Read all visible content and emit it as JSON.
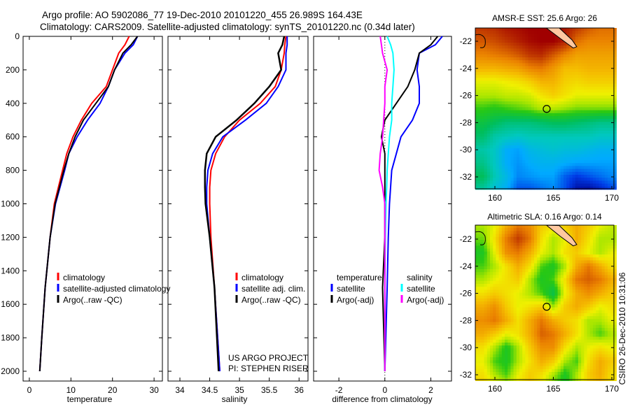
{
  "title_line1": "Argo profile: AO 5902086_77 19-Dec-2010 20101220_455 26.989S 164.43E",
  "title_line2": "Climatology: CARS2009. Satellite-adjusted climatology: synTS_20101220.nc (0.34d later)",
  "side_stamp": "CSIRO 26-Dec-2010 10:31:06",
  "project_line1": "US ARGO PROJECT",
  "project_line2": "PI: STEPHEN RISER",
  "colors": {
    "climatology": "#ff0000",
    "satellite": "#0000ff",
    "argo": "#000000",
    "sal_satellite": "#00ffff",
    "sal_argo": "#ff00ff",
    "land": "#ffc8a0"
  },
  "chart_data": [
    {
      "type": "line",
      "xlabel": "temperature",
      "ylabel": "",
      "xlim": [
        -1.5,
        32
      ],
      "ylim": [
        2000,
        0
      ],
      "xticks": [
        "0",
        "10",
        "20",
        "30"
      ],
      "yticks": [
        "0",
        "200",
        "400",
        "600",
        "800",
        "1000",
        "1200",
        "1400",
        "1600",
        "1800",
        "2000"
      ],
      "legend": [
        "climatology",
        "satellite-adjusted climatology",
        "Argo(..raw -QC)"
      ],
      "depth": [
        0,
        50,
        100,
        200,
        300,
        400,
        500,
        600,
        700,
        800,
        1000,
        1200,
        1500,
        1800,
        2000
      ],
      "series": [
        {
          "name": "climatology",
          "values": [
            24,
            23,
            21.5,
            20,
            18.5,
            15,
            12.5,
            10.5,
            9,
            8,
            6,
            5,
            3.8,
            3,
            2.5
          ]
        },
        {
          "name": "satellite-adjusted climatology",
          "values": [
            26,
            25,
            23,
            20.5,
            19,
            17,
            14,
            11.5,
            9.5,
            8.5,
            6.3,
            5,
            3.8,
            3,
            2.5
          ]
        },
        {
          "name": "Argo(..raw -QC)",
          "values": [
            26,
            24.5,
            22.5,
            20.5,
            19,
            16,
            13,
            11,
            9.5,
            8.3,
            6.2,
            5,
            3.8,
            3,
            2.5
          ]
        }
      ]
    },
    {
      "type": "line",
      "xlabel": "salinity",
      "xlim": [
        33.8,
        36.15
      ],
      "ylim": [
        2000,
        0
      ],
      "xticks": [
        "34",
        "34.5",
        "35",
        "35.5",
        "36"
      ],
      "legend": [
        "climatology",
        "satellite adj. clim.",
        "Argo(..raw -QC)"
      ],
      "depth": [
        0,
        50,
        100,
        200,
        300,
        400,
        500,
        600,
        700,
        800,
        900,
        1000,
        1200,
        1500,
        2000
      ],
      "series": [
        {
          "name": "climatology",
          "values": [
            35.78,
            35.76,
            35.75,
            35.7,
            35.6,
            35.35,
            35.0,
            34.75,
            34.6,
            34.52,
            34.5,
            34.5,
            34.52,
            34.58,
            34.67
          ]
        },
        {
          "name": "satellite adj. clim.",
          "values": [
            35.8,
            35.8,
            35.78,
            35.78,
            35.65,
            35.45,
            35.1,
            34.72,
            34.55,
            34.47,
            34.45,
            34.45,
            34.5,
            34.58,
            34.67
          ]
        },
        {
          "name": "Argo(..raw -QC)",
          "values": [
            35.75,
            35.72,
            35.65,
            35.7,
            35.5,
            35.25,
            34.95,
            34.6,
            34.45,
            34.42,
            34.42,
            34.43,
            34.5,
            34.58,
            34.65
          ]
        }
      ]
    },
    {
      "type": "line",
      "xlabel": "difference from climatology",
      "xlim": [
        -3.1,
        2.9
      ],
      "ylim": [
        2000,
        0
      ],
      "xticks": [
        "-2",
        "0",
        "2"
      ],
      "legend_groups": [
        {
          "heading": "temperature",
          "items": [
            "satellite",
            "Argo(-adj)"
          ]
        },
        {
          "heading": "salinity",
          "items": [
            "satellite",
            "Argo(-adj)"
          ]
        }
      ],
      "depth": [
        0,
        50,
        100,
        200,
        300,
        400,
        500,
        600,
        700,
        800,
        900,
        1000,
        1200,
        1500,
        2000
      ],
      "series": [
        {
          "name": "temperature satellite",
          "values": [
            2.5,
            2.2,
            1.5,
            1.4,
            1.5,
            1.5,
            1.2,
            0.7,
            0.5,
            0.3,
            0.25,
            0.2,
            0.15,
            0.1,
            0
          ]
        },
        {
          "name": "temperature Argo(-adj)",
          "values": [
            2.3,
            2.0,
            1.5,
            1.3,
            1.0,
            0.5,
            0.0,
            -0.15,
            0,
            0,
            0,
            0,
            0,
            -0.1,
            0
          ]
        },
        {
          "name": "salinity satellite",
          "values": [
            0.1,
            0.25,
            0.35,
            0.4,
            0.35,
            0.3,
            0.3,
            0.2,
            0.15,
            0.1,
            0.08,
            0.05,
            0.02,
            0,
            0
          ]
        },
        {
          "name": "salinity Argo(-adj)",
          "values": [
            -0.2,
            -0.15,
            -0.1,
            0.1,
            0.0,
            0.0,
            -0.05,
            -0.1,
            -0.2,
            -0.25,
            -0.1,
            0,
            0,
            0,
            0
          ]
        }
      ]
    },
    {
      "type": "heatmap",
      "title": "AMSR-E SST: 25.6 Argo: 26",
      "lon": [
        159,
        160,
        161,
        162,
        163,
        164,
        165,
        166,
        167,
        168,
        169,
        170
      ],
      "lat": [
        -21,
        -22,
        -23,
        -24,
        -25,
        -26,
        -27,
        -28,
        -29,
        -30,
        -31,
        -32,
        -33
      ],
      "xticks": [
        "160",
        "165",
        "170"
      ],
      "yticks": [
        "-22",
        "-24",
        "-26",
        "-28",
        "-30",
        "-32"
      ],
      "range": [
        21.5,
        28
      ],
      "values": [
        [
          27.5,
          27.6,
          27.8,
          27.9,
          28,
          28,
          28,
          27.8,
          27.5,
          27.2,
          27,
          27
        ],
        [
          27.2,
          27.3,
          27.5,
          27.7,
          27.9,
          28,
          28,
          27.7,
          27,
          26.8,
          26.8,
          26.8
        ],
        [
          26.8,
          26.9,
          27,
          27.2,
          27.5,
          27.6,
          27.2,
          26.8,
          26.5,
          26.5,
          26.5,
          26.5
        ],
        [
          26.3,
          26.3,
          26.4,
          26.5,
          26.8,
          26.9,
          26.6,
          26.2,
          26.2,
          26.3,
          26.3,
          26.3
        ],
        [
          25.6,
          25.6,
          25.7,
          25.8,
          26,
          26.3,
          26.3,
          26,
          25.9,
          26,
          26,
          26
        ],
        [
          25.3,
          25.3,
          25.4,
          25.4,
          25.5,
          25.8,
          26,
          25.8,
          25.6,
          25.6,
          25.6,
          25.6
        ],
        [
          24.9,
          24.8,
          24.9,
          25,
          25.1,
          25.3,
          25.3,
          25.2,
          25.1,
          25.1,
          25.1,
          25.1
        ],
        [
          24.5,
          24.3,
          24.1,
          24.1,
          24.1,
          24.2,
          24.3,
          24.3,
          24.2,
          24.1,
          24,
          24
        ],
        [
          24.2,
          23.8,
          23.7,
          23.6,
          23.7,
          23.7,
          23.7,
          23.7,
          23.7,
          23.7,
          23.6,
          23.6
        ],
        [
          23.8,
          23.6,
          23.1,
          23,
          23.3,
          23.4,
          23.5,
          23.4,
          23.4,
          23.3,
          23.2,
          23.2
        ],
        [
          24,
          23.6,
          23.1,
          22.9,
          23.1,
          23.2,
          23.2,
          23.1,
          23,
          23,
          23,
          23
        ],
        [
          24.3,
          23.7,
          23.3,
          22.8,
          22.9,
          23,
          23,
          22.5,
          22.2,
          22.4,
          22.6,
          22.8
        ],
        [
          23.8,
          23.4,
          23.1,
          22.4,
          22.4,
          22.6,
          22.8,
          22.4,
          21.7,
          21.6,
          21.9,
          22.3
        ]
      ],
      "argo_position": [
        164.43,
        -26.989
      ]
    },
    {
      "type": "heatmap",
      "title": "Altimetric SLA: 0.16 Argo: 0.14",
      "lon": [
        159,
        160,
        161,
        162,
        163,
        164,
        165,
        166,
        167,
        168,
        169,
        170
      ],
      "lat": [
        -21,
        -22,
        -23,
        -24,
        -25,
        -26,
        -27,
        -28,
        -29,
        -30,
        -31,
        -32,
        -33
      ],
      "xticks": [
        "160",
        "165",
        "170"
      ],
      "yticks": [
        "-22",
        "-24",
        "-26",
        "-28",
        "-30",
        "-32"
      ],
      "range": [
        -0.3,
        0.3
      ],
      "values": [
        [
          0.05,
          0.08,
          0.15,
          0.2,
          0.18,
          0.12,
          0.1,
          0.12,
          0.15,
          0.12,
          0.08,
          0.06
        ],
        [
          0.03,
          0.1,
          0.2,
          0.25,
          0.2,
          0.1,
          0.05,
          0.08,
          0.15,
          0.1,
          0.05,
          0.05
        ],
        [
          0.0,
          0.08,
          0.18,
          0.2,
          0.15,
          0.08,
          0.05,
          0.1,
          0.12,
          0.08,
          0.05,
          0.08
        ],
        [
          0.02,
          0.05,
          0.1,
          0.15,
          0.1,
          0.02,
          0.0,
          0.05,
          0.15,
          0.2,
          0.15,
          0.1
        ],
        [
          0.05,
          0.08,
          0.1,
          0.12,
          0.05,
          0.0,
          0.02,
          0.1,
          0.2,
          0.22,
          0.2,
          0.15
        ],
        [
          0.1,
          0.12,
          0.1,
          0.08,
          0.05,
          0.02,
          -0.03,
          0.08,
          0.15,
          0.18,
          0.15,
          0.12
        ],
        [
          0.15,
          0.18,
          0.12,
          0.08,
          0.1,
          0.12,
          0.05,
          0.12,
          0.15,
          0.12,
          0.08,
          0.1
        ],
        [
          0.18,
          0.2,
          0.15,
          0.1,
          0.15,
          0.2,
          0.15,
          0.12,
          0.1,
          0.05,
          0.05,
          0.08
        ],
        [
          0.15,
          0.12,
          0.08,
          0.1,
          0.15,
          0.22,
          0.2,
          0.15,
          0.1,
          0.05,
          0.02,
          0.05
        ],
        [
          0.1,
          0.05,
          0.0,
          0.05,
          0.12,
          0.18,
          0.18,
          0.1,
          0.05,
          0.08,
          0.1,
          0.08
        ],
        [
          0.08,
          0.02,
          0.0,
          0.05,
          0.1,
          0.15,
          0.12,
          0.05,
          0.02,
          0.1,
          0.15,
          0.12
        ],
        [
          0.1,
          0.05,
          0.02,
          0.08,
          0.12,
          0.1,
          0.05,
          0.0,
          0.05,
          0.12,
          0.15,
          0.1
        ],
        [
          0.12,
          0.1,
          0.08,
          0.1,
          0.12,
          0.08,
          0.02,
          0.0,
          0.05,
          0.1,
          0.12,
          0.1
        ]
      ],
      "argo_position": [
        164.43,
        -26.989
      ]
    }
  ]
}
